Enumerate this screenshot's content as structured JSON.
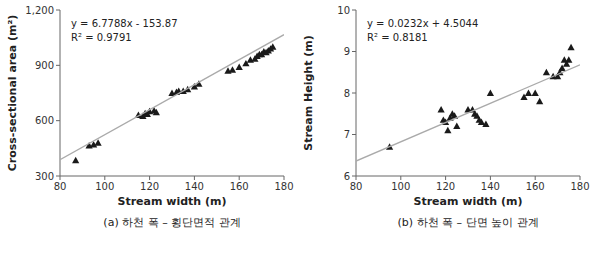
{
  "chart_data": [
    {
      "type": "scatter",
      "title": "(a) 하천 폭 – 횡단면적 관계",
      "annotations": [
        "y = 6.7788x - 153.87",
        "R² = 0.9791"
      ],
      "x_label": "Stream width (m)",
      "y_label": "Cross-sectional area (m²)",
      "xlim": [
        80,
        180
      ],
      "ylim": [
        300,
        1200
      ],
      "xticks": [
        80,
        100,
        120,
        140,
        160,
        180
      ],
      "yticks": [
        300,
        600,
        900,
        {
          "value": 1200,
          "label": "1,200"
        }
      ],
      "grid": false,
      "series": [
        {
          "type": "scatter",
          "marker": "triangle",
          "color": "#1a1a1a",
          "x": [
            87,
            93,
            95,
            97,
            115,
            117,
            118,
            119,
            120,
            122,
            123,
            130,
            132,
            133,
            135,
            137,
            140,
            142,
            155,
            157,
            160,
            163,
            165,
            167,
            168,
            169,
            170,
            171,
            172,
            173,
            174,
            175
          ],
          "values": [
            385,
            465,
            470,
            480,
            630,
            625,
            640,
            635,
            650,
            655,
            645,
            750,
            755,
            760,
            760,
            770,
            785,
            800,
            870,
            875,
            890,
            910,
            930,
            935,
            950,
            960,
            960,
            975,
            970,
            980,
            990,
            1000
          ]
        },
        {
          "type": "line",
          "line_style": "solid",
          "color": "#aaaaaa",
          "x": [
            80,
            180
          ],
          "values": [
            388.434,
            1066.314
          ]
        }
      ]
    },
    {
      "type": "scatter",
      "title": "(b) 하천 폭 – 단면 높이 관계",
      "annotations": [
        "y = 0.0232x + 4.5044",
        "R² = 0.8181"
      ],
      "x_label": "Stream width (m)",
      "y_label": "Stream Height (m)",
      "xlim": [
        80,
        180
      ],
      "ylim": [
        6,
        10
      ],
      "xticks": [
        80,
        100,
        120,
        140,
        160,
        180
      ],
      "yticks": [
        6,
        7,
        8,
        9,
        10
      ],
      "grid": false,
      "series": [
        {
          "type": "scatter",
          "marker": "triangle",
          "color": "#1a1a1a",
          "x": [
            95,
            118,
            119,
            120,
            121,
            122,
            123,
            124,
            125,
            130,
            132,
            133,
            134,
            135,
            136,
            138,
            140,
            155,
            157,
            160,
            162,
            165,
            168,
            170,
            171,
            172,
            173,
            174,
            175,
            176
          ],
          "values": [
            6.7,
            7.6,
            7.35,
            7.3,
            7.1,
            7.4,
            7.5,
            7.45,
            7.2,
            7.6,
            7.6,
            7.5,
            7.45,
            7.35,
            7.3,
            7.25,
            8.0,
            7.9,
            8.0,
            8.0,
            7.8,
            8.5,
            8.4,
            8.4,
            8.5,
            8.6,
            8.8,
            8.7,
            8.8,
            9.1
          ]
        },
        {
          "type": "line",
          "line_style": "solid",
          "color": "#aaaaaa",
          "x": [
            80,
            180
          ],
          "values": [
            6.3604,
            8.6804
          ]
        }
      ]
    }
  ]
}
